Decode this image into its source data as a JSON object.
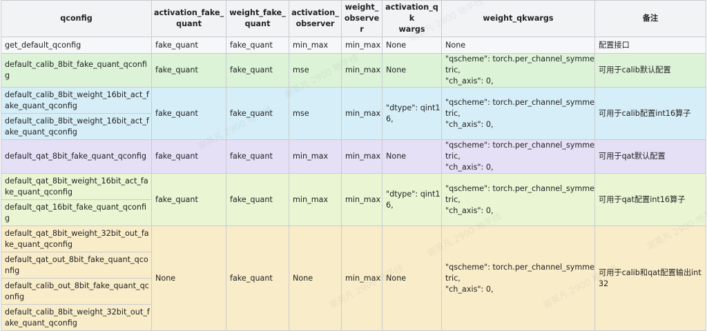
{
  "headers": [
    "qconfig",
    "activation_fake_\nquant",
    "weight_fake_\nquant",
    "activation_\nobserver",
    "weight_\nobserver",
    "activation_qk\nwargs",
    "weight_qkwargs",
    "备注"
  ],
  "row_plain": {
    "qconfig": "get_default_qconfig",
    "act_fq": "fake_quant",
    "w_fq": "fake_quant",
    "act_obs": "min_max",
    "w_obs": "min_max",
    "act_kw": "None",
    "w_kw": "None",
    "note": "配置接口"
  },
  "group_green": {
    "qconfigs": [
      "default_calib_8bit_fake_quant_qconfig"
    ],
    "act_fq": "fake_quant",
    "w_fq": "fake_quant",
    "act_obs": "mse",
    "w_obs": "min_max",
    "act_kw": "None",
    "w_kw": "\"qscheme\": torch.per_channel_symmetric,\n\"ch_axis\": 0,",
    "note": "可用于calib默认配置"
  },
  "group_blue": {
    "qconfigs": [
      "default_calib_8bit_weight_16bit_act_fake_quant_qconfig",
      "default_calib_8bit_weight_16bit_act_fake_quant_qconfig"
    ],
    "act_fq": "fake_quant",
    "w_fq": "fake_quant",
    "act_obs": "mse",
    "w_obs": "min_max",
    "act_kw": "\"dtype\": qint16,",
    "w_kw": "\"qscheme\": torch.per_channel_symmetric,\n\"ch_axis\": 0,",
    "note": "可用于calib配置int16算子"
  },
  "group_purple": {
    "qconfigs": [
      "default_qat_8bit_fake_quant_qconfig"
    ],
    "act_fq": "fake_quant",
    "w_fq": "fake_quant",
    "act_obs": "min_max",
    "w_obs": "min_max",
    "act_kw": "None",
    "w_kw": "\"qscheme\": torch.per_channel_symmetric,\n\"ch_axis\": 0,",
    "note": "可用于qat默认配置"
  },
  "group_lime": {
    "qconfigs": [
      "default_qat_8bit_weight_16bit_act_fake_quant_qconfig",
      "default_qat_16bit_fake_quant_qconfig"
    ],
    "act_fq": "fake_quant",
    "w_fq": "fake_quant",
    "act_obs": "min_max",
    "w_obs": "min_max",
    "act_kw": "\"dtype\": qint16,",
    "w_kw": "\"qscheme\": torch.per_channel_symmetric,\n\"ch_axis\": 0,",
    "note": "可用于qat配置int16算子"
  },
  "group_yellow": {
    "qconfigs": [
      "default_qat_8bit_weight_32bit_out_fake_quant_qconfig",
      "default_qat_out_8bit_fake_quant_qconfig",
      "default_calib_out_8bit_fake_quant_qconfig",
      "default_calib_8bit_weight_32bit_out_fake_quant_qconfig"
    ],
    "act_fq": "None",
    "w_fq": "fake_quant",
    "act_obs": "None",
    "w_obs": "min_max",
    "act_kw": "None",
    "w_kw": "\"qscheme\": torch.per_channel_symmetric,\n\"ch_axis\": 0,",
    "note": "可用于calib和qat配置输出int32"
  },
  "watermark_text": "谢英凡 2900 地平线"
}
